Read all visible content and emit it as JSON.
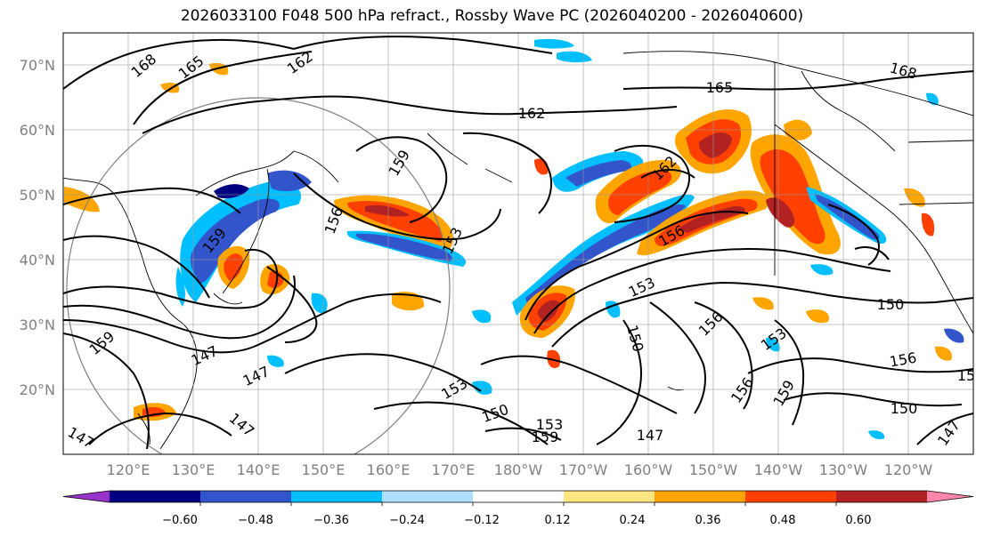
{
  "title": "2026033100 F048 500 hPa refract., Rossby Wave PC (2026040200 - 2026040600)",
  "lat_labels": [
    "70°N",
    "60°N",
    "50°N",
    "40°N",
    "30°N",
    "20°N"
  ],
  "lon_labels": [
    "120°E",
    "130°E",
    "140°E",
    "150°E",
    "160°E",
    "170°E",
    "180°W",
    "170°W",
    "160°W",
    "150°W",
    "140°W",
    "130°W",
    "120°W"
  ],
  "contour_labels": [
    "168",
    "165",
    "162",
    "165",
    "162",
    "168",
    "162",
    "159",
    "156",
    "153",
    "159",
    "156",
    "153",
    "147",
    "147",
    "147",
    "147",
    "150",
    "153",
    "159",
    "147",
    "150",
    "153",
    "156",
    "153",
    "150",
    "156",
    "159",
    "156",
    "159",
    "150",
    "147",
    "15"
  ],
  "colorbar": {
    "colors": [
      "#9933cc",
      "#000080",
      "#3355cc",
      "#00bfff",
      "#b0e0ff",
      "#ffffff",
      "#ffe680",
      "#ffa500",
      "#ff4000",
      "#b22222",
      "#ff88aa"
    ],
    "ticks": [
      "−0.60",
      "−0.48",
      "−0.36",
      "−0.24",
      "−0.12",
      "0.12",
      "0.24",
      "0.36",
      "0.48",
      "0.60"
    ]
  },
  "map": {
    "projection": "PlateCarree",
    "lon_range": [
      110,
      250
    ],
    "lat_range": [
      10,
      75
    ],
    "reference_circle": "grey circle centred near 140°E, 35°N"
  }
}
